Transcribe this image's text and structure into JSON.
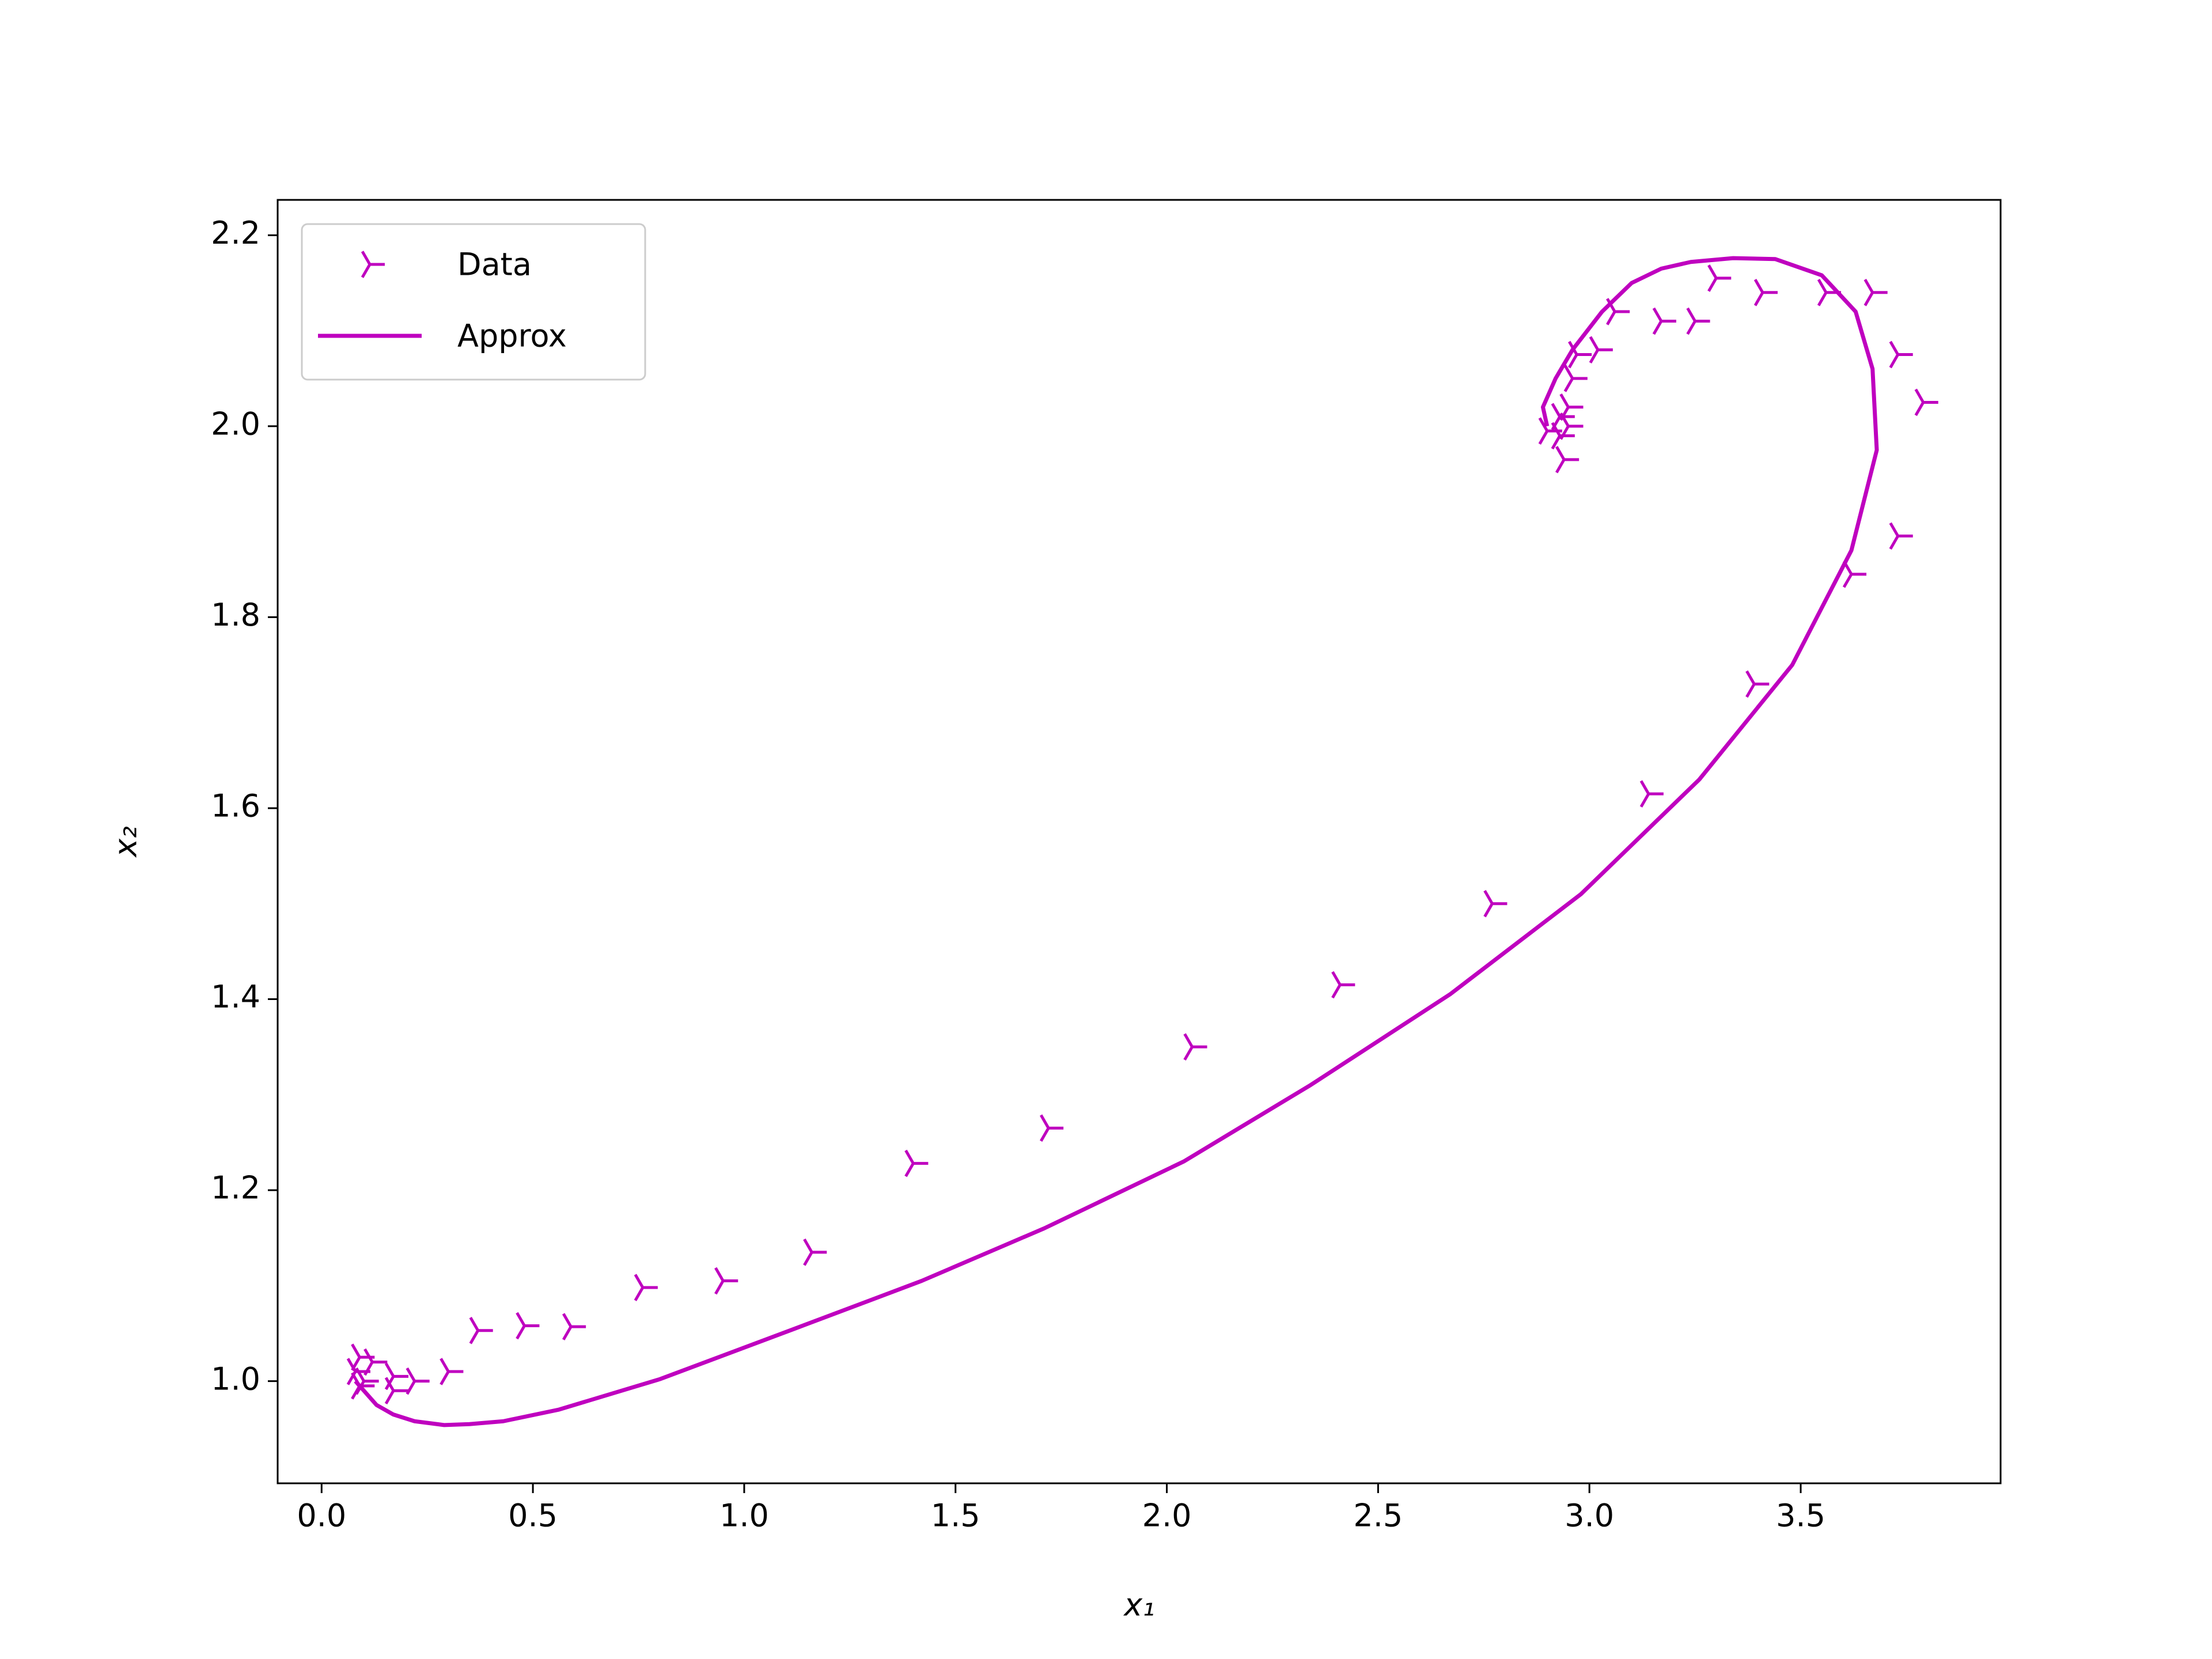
{
  "chart_data": {
    "type": "phase",
    "xlabel": "x₁",
    "ylabel": "x₂",
    "xlim": [
      -0.104,
      3.973
    ],
    "ylim": [
      0.893,
      2.237
    ],
    "xticks": [
      {
        "value": 0,
        "label": "0.0"
      },
      0.5,
      {
        "value": 1,
        "label": "1.0"
      },
      1.5,
      {
        "value": 2,
        "label": "2.0"
      },
      2.5,
      {
        "value": 3,
        "label": "3.0"
      },
      3.5
    ],
    "yticks": [
      {
        "value": 1,
        "label": "1.0"
      },
      1.2,
      1.4,
      1.6,
      1.8,
      {
        "value": 2,
        "label": "2.0"
      },
      2.2
    ],
    "legend": "upper left",
    "series": [
      {
        "name": "Data",
        "kind": "marker",
        "color": "#bf00bf",
        "x": [
          2.95,
          2.93,
          2.9,
          2.94,
          2.93,
          2.95,
          2.96,
          2.97,
          3.02,
          3.06,
          3.17,
          3.25,
          3.3,
          3.41,
          3.56,
          3.67,
          3.73,
          3.79,
          3.73,
          3.62,
          3.39,
          3.14,
          2.77,
          2.41,
          2.06,
          1.72,
          1.4,
          1.16,
          0.95,
          0.76,
          0.59,
          0.48,
          0.37,
          0.3,
          0.22,
          0.17,
          0.17,
          0.12,
          0.09,
          0.08,
          0.09,
          0.1
        ],
        "values": [
          2.0,
          1.99,
          1.995,
          1.965,
          2.01,
          2.02,
          2.05,
          2.075,
          2.08,
          2.12,
          2.11,
          2.11,
          2.155,
          2.14,
          2.14,
          2.14,
          2.075,
          2.025,
          1.885,
          1.845,
          1.73,
          1.615,
          1.5,
          1.415,
          1.35,
          1.265,
          1.228,
          1.135,
          1.105,
          1.098,
          1.057,
          1.058,
          1.053,
          1.01,
          1.0,
          0.99,
          1.005,
          1.02,
          1.025,
          1.01,
          0.995,
          1.0
        ]
      },
      {
        "name": "Approx",
        "kind": "line",
        "color": "#bf00bf",
        "x": [
          2.9,
          2.89,
          2.92,
          2.96,
          3.03,
          3.1,
          3.17,
          3.24,
          3.34,
          3.44,
          3.55,
          3.63,
          3.67,
          3.68,
          3.62,
          3.48,
          3.26,
          2.98,
          2.67,
          2.34,
          2.04,
          1.71,
          1.42,
          1.12,
          0.8,
          0.56,
          0.43,
          0.35,
          0.29,
          0.22,
          0.17,
          0.13,
          0.1,
          0.08
        ],
        "values": [
          2.0,
          2.02,
          2.05,
          2.08,
          2.12,
          2.15,
          2.165,
          2.172,
          2.176,
          2.175,
          2.158,
          2.12,
          2.06,
          1.975,
          1.87,
          1.75,
          1.63,
          1.51,
          1.405,
          1.31,
          1.23,
          1.16,
          1.105,
          1.055,
          1.002,
          0.97,
          0.958,
          0.955,
          0.954,
          0.958,
          0.965,
          0.975,
          0.99,
          1.0
        ]
      }
    ]
  }
}
